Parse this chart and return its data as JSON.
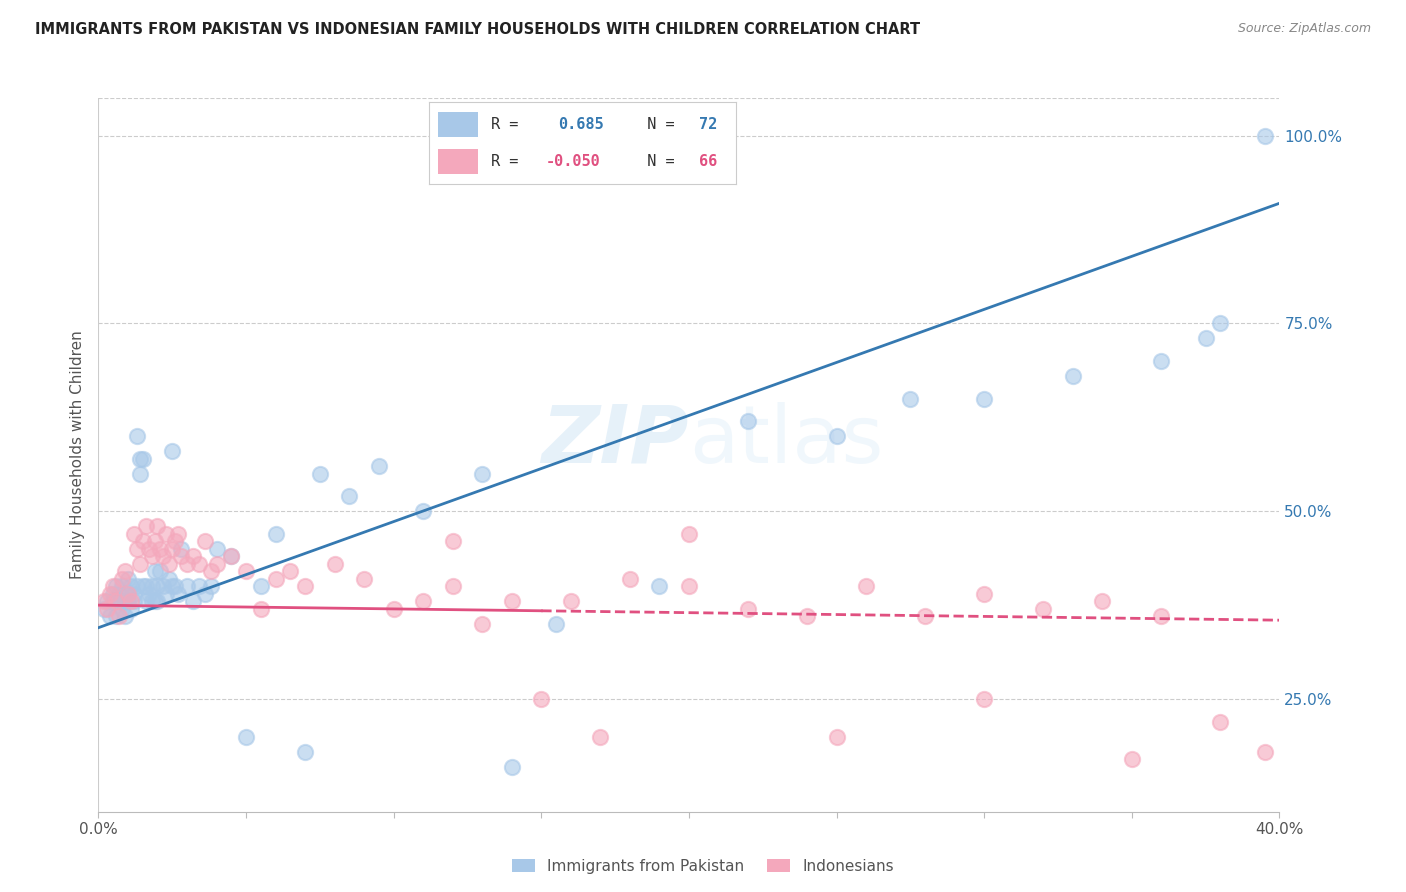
{
  "title": "IMMIGRANTS FROM PAKISTAN VS INDONESIAN FAMILY HOUSEHOLDS WITH CHILDREN CORRELATION CHART",
  "source": "Source: ZipAtlas.com",
  "ylabel": "Family Households with Children",
  "ytick_positions": [
    0.25,
    0.5,
    0.75,
    1.0
  ],
  "xmin": 0.0,
  "xmax": 0.4,
  "ymin": 0.1,
  "ymax": 1.05,
  "blue_color": "#a8c8e8",
  "pink_color": "#f4a8bc",
  "blue_line_color": "#3579b1",
  "pink_line_color": "#e05080",
  "blue_line_x0": 0.0,
  "blue_line_y0": 0.345,
  "blue_line_x1": 0.4,
  "blue_line_y1": 0.91,
  "pink_line_x0": 0.0,
  "pink_line_y0": 0.375,
  "pink_line_x1": 0.4,
  "pink_line_y1": 0.355,
  "pakistan_x": [
    0.002,
    0.003,
    0.004,
    0.005,
    0.005,
    0.006,
    0.006,
    0.007,
    0.007,
    0.008,
    0.008,
    0.009,
    0.009,
    0.01,
    0.01,
    0.01,
    0.011,
    0.011,
    0.012,
    0.012,
    0.013,
    0.013,
    0.014,
    0.014,
    0.015,
    0.015,
    0.016,
    0.016,
    0.017,
    0.018,
    0.018,
    0.019,
    0.019,
    0.02,
    0.02,
    0.021,
    0.022,
    0.023,
    0.024,
    0.025,
    0.025,
    0.026,
    0.027,
    0.028,
    0.03,
    0.032,
    0.034,
    0.036,
    0.038,
    0.04,
    0.045,
    0.05,
    0.055,
    0.06,
    0.07,
    0.075,
    0.085,
    0.095,
    0.11,
    0.13,
    0.14,
    0.155,
    0.19,
    0.22,
    0.25,
    0.275,
    0.3,
    0.33,
    0.36,
    0.375,
    0.38,
    0.395
  ],
  "pakistan_y": [
    0.37,
    0.38,
    0.36,
    0.39,
    0.38,
    0.36,
    0.4,
    0.38,
    0.39,
    0.37,
    0.4,
    0.38,
    0.36,
    0.39,
    0.41,
    0.38,
    0.37,
    0.4,
    0.39,
    0.38,
    0.6,
    0.4,
    0.57,
    0.55,
    0.57,
    0.4,
    0.38,
    0.4,
    0.39,
    0.4,
    0.38,
    0.42,
    0.38,
    0.4,
    0.38,
    0.42,
    0.4,
    0.39,
    0.41,
    0.4,
    0.58,
    0.4,
    0.39,
    0.45,
    0.4,
    0.38,
    0.4,
    0.39,
    0.4,
    0.45,
    0.44,
    0.2,
    0.4,
    0.47,
    0.18,
    0.55,
    0.52,
    0.56,
    0.5,
    0.55,
    0.16,
    0.35,
    0.4,
    0.62,
    0.6,
    0.65,
    0.65,
    0.68,
    0.7,
    0.73,
    0.75,
    1.0
  ],
  "indonesian_x": [
    0.002,
    0.003,
    0.004,
    0.005,
    0.006,
    0.007,
    0.008,
    0.009,
    0.01,
    0.011,
    0.012,
    0.013,
    0.014,
    0.015,
    0.016,
    0.017,
    0.018,
    0.019,
    0.02,
    0.021,
    0.022,
    0.023,
    0.024,
    0.025,
    0.026,
    0.027,
    0.028,
    0.03,
    0.032,
    0.034,
    0.036,
    0.038,
    0.04,
    0.045,
    0.05,
    0.055,
    0.06,
    0.065,
    0.07,
    0.08,
    0.09,
    0.1,
    0.11,
    0.12,
    0.14,
    0.16,
    0.18,
    0.2,
    0.22,
    0.24,
    0.26,
    0.28,
    0.3,
    0.32,
    0.34,
    0.36,
    0.38,
    0.395,
    0.2,
    0.25,
    0.15,
    0.17,
    0.12,
    0.13,
    0.3,
    0.35
  ],
  "indonesian_y": [
    0.38,
    0.37,
    0.39,
    0.4,
    0.38,
    0.36,
    0.41,
    0.42,
    0.39,
    0.38,
    0.47,
    0.45,
    0.43,
    0.46,
    0.48,
    0.45,
    0.44,
    0.46,
    0.48,
    0.45,
    0.44,
    0.47,
    0.43,
    0.45,
    0.46,
    0.47,
    0.44,
    0.43,
    0.44,
    0.43,
    0.46,
    0.42,
    0.43,
    0.44,
    0.42,
    0.37,
    0.41,
    0.42,
    0.4,
    0.43,
    0.41,
    0.37,
    0.38,
    0.4,
    0.38,
    0.38,
    0.41,
    0.4,
    0.37,
    0.36,
    0.4,
    0.36,
    0.39,
    0.37,
    0.38,
    0.36,
    0.22,
    0.18,
    0.47,
    0.2,
    0.25,
    0.2,
    0.46,
    0.35,
    0.25,
    0.17
  ]
}
